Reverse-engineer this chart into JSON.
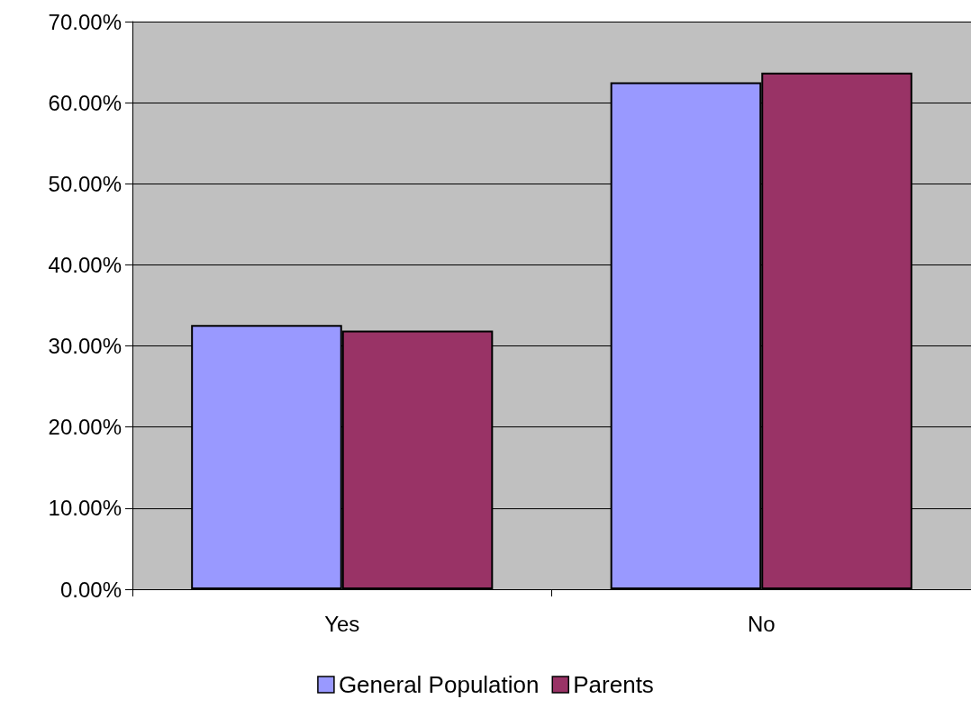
{
  "chart_data": {
    "type": "bar",
    "categories": [
      "Yes",
      "No"
    ],
    "series": [
      {
        "name": "General Population",
        "color": "#9999ff",
        "values": [
          32.6,
          62.5
        ]
      },
      {
        "name": "Parents",
        "color": "#993366",
        "values": [
          31.9,
          63.7
        ]
      }
    ],
    "ylim": [
      0,
      70
    ],
    "yticks": [
      {
        "value": 0,
        "label": "0.00%"
      },
      {
        "value": 10,
        "label": "10.00%"
      },
      {
        "value": 20,
        "label": "20.00%"
      },
      {
        "value": 30,
        "label": "30.00%"
      },
      {
        "value": 40,
        "label": "40.00%"
      },
      {
        "value": 50,
        "label": "50.00%"
      },
      {
        "value": 60,
        "label": "60.00%"
      },
      {
        "value": 70,
        "label": "70.00%"
      }
    ],
    "grid": "y",
    "legend": "bottom"
  }
}
